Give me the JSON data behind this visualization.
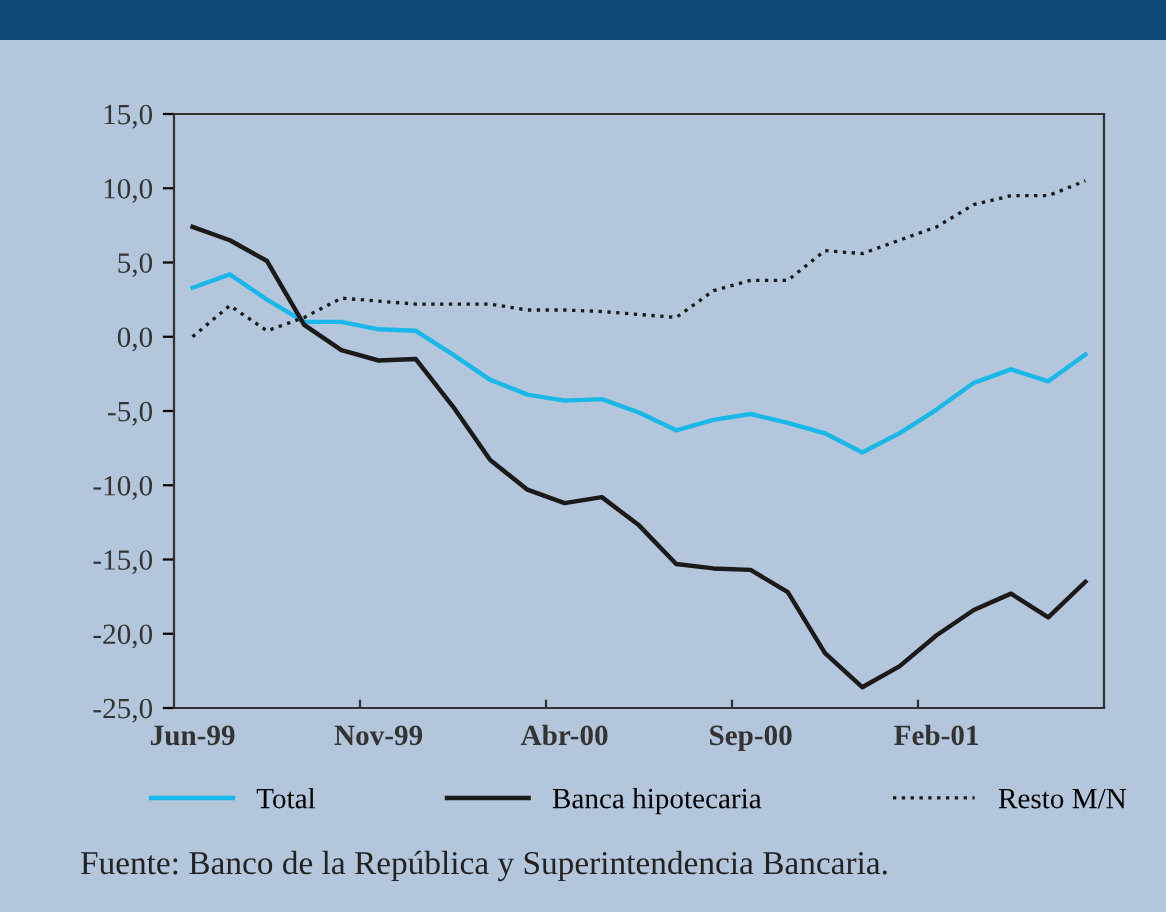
{
  "chart_data": {
    "type": "line",
    "categories": [
      "Jun-99",
      null,
      null,
      null,
      null,
      "Nov-99",
      null,
      null,
      null,
      null,
      "Abr-00",
      null,
      null,
      null,
      null,
      "Sep-00",
      null,
      null,
      null,
      null,
      "Feb-01",
      null,
      null,
      null,
      null
    ],
    "series": [
      {
        "name": "Total",
        "color": "#1ab8e8",
        "line_style": "solid",
        "values": [
          3.3,
          4.2,
          2.5,
          1.0,
          1.0,
          0.5,
          0.4,
          -1.2,
          -2.9,
          -3.9,
          -4.3,
          -4.2,
          -5.1,
          -6.3,
          -5.6,
          -5.2,
          -5.8,
          -6.5,
          -7.8,
          -6.5,
          -4.9,
          -3.1,
          -2.2,
          -3.0,
          -1.2
        ]
      },
      {
        "name": "Banca hipotecaria",
        "color": "#1a1a1a",
        "line_style": "solid",
        "values": [
          7.4,
          6.5,
          5.1,
          0.8,
          -0.9,
          -1.6,
          -1.5,
          -4.7,
          -8.3,
          -10.3,
          -11.2,
          -10.8,
          -12.7,
          -15.3,
          -15.6,
          -15.7,
          -17.2,
          -21.3,
          -23.6,
          -22.2,
          -20.1,
          -18.4,
          -17.3,
          -18.9,
          -16.5
        ]
      },
      {
        "name": "Resto M/N",
        "color": "#1a1a1a",
        "line_style": "dotted",
        "values": [
          0.0,
          2.1,
          0.4,
          1.3,
          2.6,
          2.4,
          2.2,
          2.2,
          2.2,
          1.8,
          1.8,
          1.7,
          1.5,
          1.3,
          3.1,
          3.8,
          3.8,
          5.8,
          5.6,
          6.5,
          7.4,
          8.9,
          9.5,
          9.5,
          10.5
        ]
      }
    ],
    "ylim": [
      -25,
      15
    ],
    "yticks": [
      {
        "value": -25,
        "label": "-25,0"
      },
      {
        "value": -20,
        "label": "-20,0"
      },
      {
        "value": -15,
        "label": "-15,0"
      },
      {
        "value": -10,
        "label": "-10,0"
      },
      {
        "value": -5,
        "label": "-5,0"
      },
      {
        "value": 0,
        "label": "0,0"
      },
      {
        "value": 5,
        "label": "5,0"
      },
      {
        "value": 10,
        "label": "10,0"
      },
      {
        "value": 15,
        "label": "15,0"
      }
    ],
    "grid": false,
    "legend": "bottom",
    "marker": "none",
    "annotations": [
      "Fuente: Banco de la República y Superintendencia Bancaria."
    ]
  }
}
